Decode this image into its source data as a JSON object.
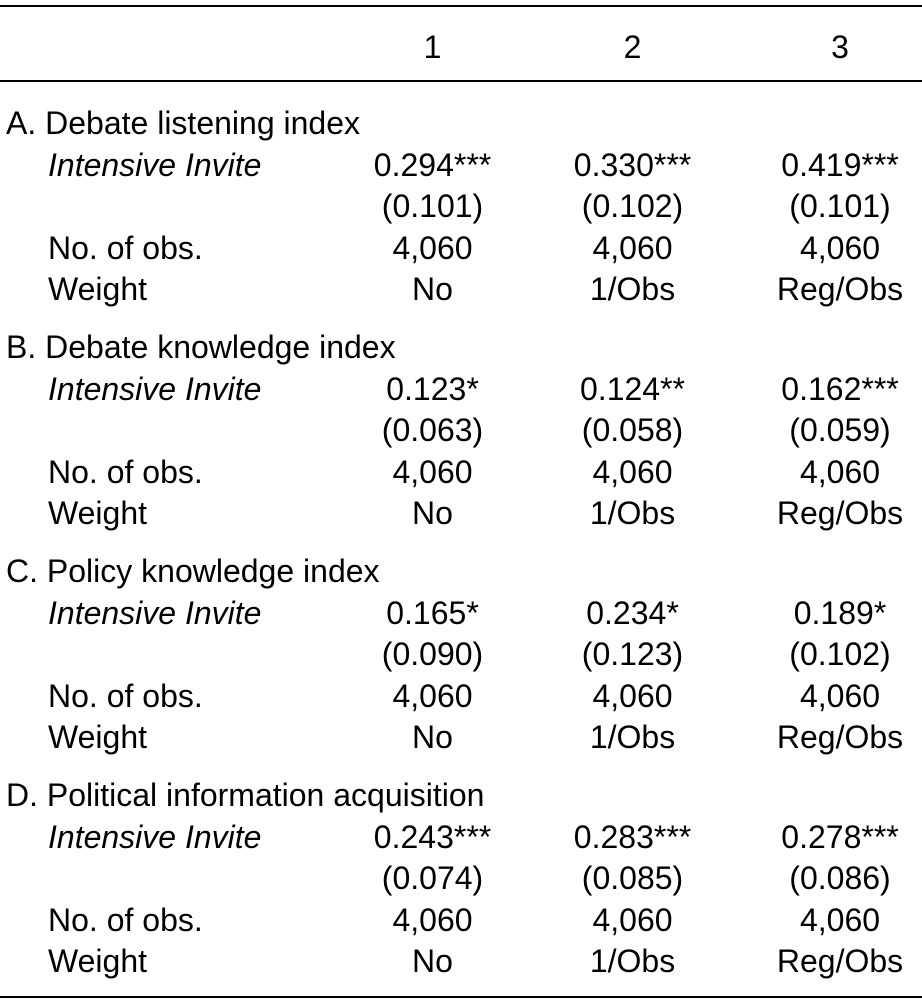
{
  "header": {
    "col1": "1",
    "col2": "2",
    "col3": "3"
  },
  "panels": [
    {
      "title": "A. Debate listening index",
      "coef_label": "Intensive Invite",
      "coef": [
        "0.294***",
        "0.330***",
        "0.419***"
      ],
      "se": [
        "(0.101)",
        "(0.102)",
        "(0.101)"
      ],
      "obs_label": "No. of obs.",
      "obs": [
        "4,060",
        "4,060",
        "4,060"
      ],
      "weight_label": "Weight",
      "weight": [
        "No",
        "1/Obs",
        "Reg/Obs"
      ]
    },
    {
      "title": "B. Debate knowledge index",
      "coef_label": "Intensive Invite",
      "coef": [
        "0.123*",
        "0.124**",
        "0.162***"
      ],
      "se": [
        "(0.063)",
        "(0.058)",
        "(0.059)"
      ],
      "obs_label": "No. of obs.",
      "obs": [
        "4,060",
        "4,060",
        "4,060"
      ],
      "weight_label": "Weight",
      "weight": [
        "No",
        "1/Obs",
        "Reg/Obs"
      ]
    },
    {
      "title": "C. Policy knowledge index",
      "coef_label": "Intensive Invite",
      "coef": [
        "0.165*",
        "0.234*",
        "0.189*"
      ],
      "se": [
        "(0.090)",
        "(0.123)",
        "(0.102)"
      ],
      "obs_label": "No. of obs.",
      "obs": [
        "4,060",
        "4,060",
        "4,060"
      ],
      "weight_label": "Weight",
      "weight": [
        "No",
        "1/Obs",
        "Reg/Obs"
      ]
    },
    {
      "title": "D. Political information acquisition",
      "coef_label": "Intensive Invite",
      "coef": [
        "0.243***",
        "0.283***",
        "0.278***"
      ],
      "se": [
        "(0.074)",
        "(0.085)",
        "(0.086)"
      ],
      "obs_label": "No. of obs.",
      "obs": [
        "4,060",
        "4,060",
        "4,060"
      ],
      "weight_label": "Weight",
      "weight": [
        "No",
        "1/Obs",
        "Reg/Obs"
      ]
    }
  ]
}
